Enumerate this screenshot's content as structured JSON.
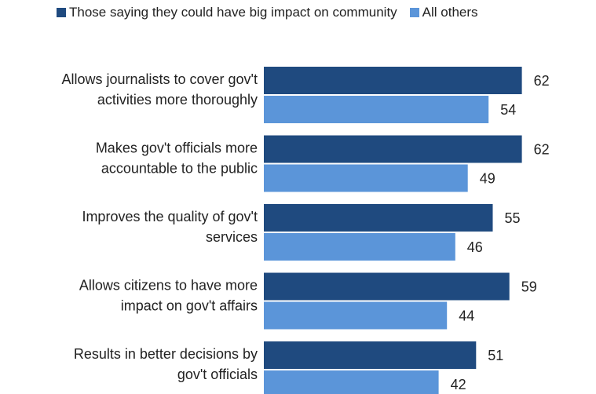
{
  "chart_data": {
    "type": "bar",
    "orientation": "horizontal",
    "categories": [
      [
        "Allows journalists to cover gov't",
        "activities more thoroughly"
      ],
      [
        "Makes gov't officials more",
        "accountable to the public"
      ],
      [
        "Improves the quality of gov't",
        "services"
      ],
      [
        "Allows citizens to have more",
        "impact on gov't affairs"
      ],
      [
        "Results in better decisions by",
        "gov't officials"
      ]
    ],
    "series": [
      {
        "name": "Those saying they could have big impact on community",
        "color": "#1f4a7f",
        "values": [
          62,
          62,
          55,
          59,
          51
        ]
      },
      {
        "name": "All others",
        "color": "#5b95d9",
        "values": [
          54,
          49,
          46,
          44,
          42
        ]
      }
    ],
    "xlim": [
      0,
      100
    ],
    "grid": false,
    "legend_position": "top"
  }
}
